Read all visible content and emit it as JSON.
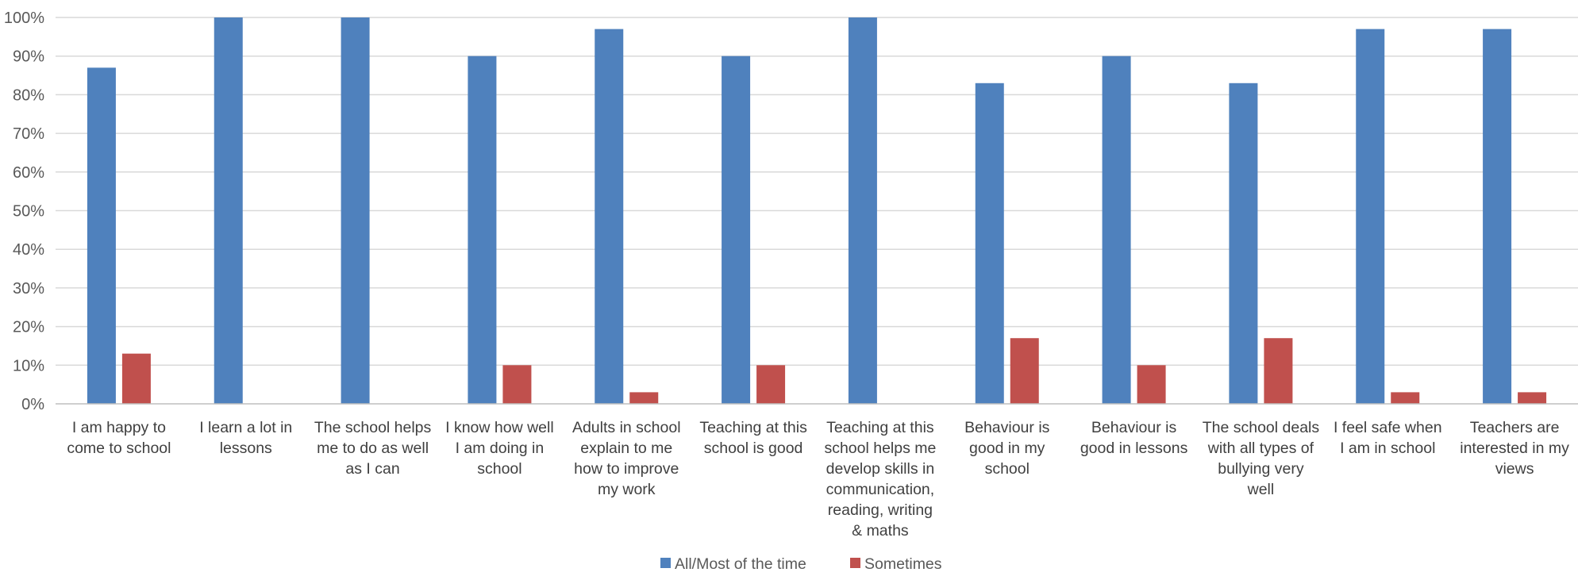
{
  "chart_data": {
    "type": "bar",
    "categories": [
      "I am happy to come to school",
      "I learn a lot in lessons",
      "The school helps me to do as well as I can",
      "I know how well I am doing in school",
      "Adults in school explain to me how to improve my work",
      "Teaching at this school is good",
      "Teaching at this school helps me develop skills in communication, reading, writing & maths",
      "Behaviour is good in my school",
      "Behaviour is good in lessons",
      "The school deals with all types of bullying very well",
      "I feel safe when I am in school",
      "Teachers are interested in my views"
    ],
    "category_lines": [
      [
        "I am happy to",
        "come to school"
      ],
      [
        "I learn a lot in",
        "lessons"
      ],
      [
        "The school helps",
        "me to do as well",
        "as I can"
      ],
      [
        "I know how well",
        "I am doing in",
        "school"
      ],
      [
        "Adults in school",
        "explain to me",
        "how to improve",
        "my work"
      ],
      [
        "Teaching at this",
        "school is good"
      ],
      [
        "Teaching at this",
        "school helps me",
        "develop skills in",
        "communication,",
        "reading, writing",
        "& maths"
      ],
      [
        "Behaviour is",
        "good in my",
        "school"
      ],
      [
        "Behaviour is",
        "good in lessons"
      ],
      [
        "The school deals",
        "with all types of",
        "bullying very",
        "well"
      ],
      [
        "I feel safe when",
        "I am in school"
      ],
      [
        "Teachers are",
        "interested in my",
        "views"
      ]
    ],
    "series": [
      {
        "name": "All/Most of the time",
        "color": "#4f81bd",
        "values": [
          87,
          100,
          100,
          90,
          97,
          90,
          100,
          83,
          90,
          83,
          97,
          97
        ]
      },
      {
        "name": "Sometimes",
        "color": "#c0504d",
        "values": [
          13,
          0,
          0,
          10,
          3,
          10,
          0,
          17,
          10,
          17,
          3,
          3
        ]
      }
    ],
    "ylim": [
      0,
      100
    ],
    "yticks": [
      0,
      10,
      20,
      30,
      40,
      50,
      60,
      70,
      80,
      90,
      100
    ],
    "ytick_labels": [
      "0%",
      "10%",
      "20%",
      "30%",
      "40%",
      "50%",
      "60%",
      "70%",
      "80%",
      "90%",
      "100%"
    ],
    "grid": true,
    "legend_position": "bottom",
    "title": "",
    "xlabel": "",
    "ylabel": ""
  }
}
